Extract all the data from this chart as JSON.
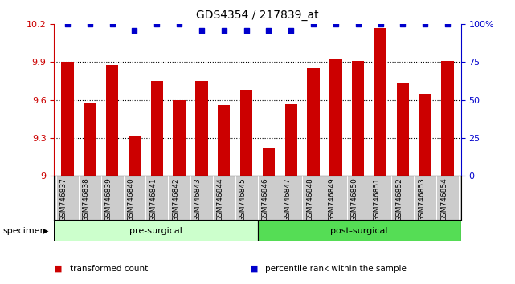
{
  "title": "GDS4354 / 217839_at",
  "samples": [
    "GSM746837",
    "GSM746838",
    "GSM746839",
    "GSM746840",
    "GSM746841",
    "GSM746842",
    "GSM746843",
    "GSM746844",
    "GSM746845",
    "GSM746846",
    "GSM746847",
    "GSM746848",
    "GSM746849",
    "GSM746850",
    "GSM746851",
    "GSM746852",
    "GSM746853",
    "GSM746854"
  ],
  "bar_values": [
    9.9,
    9.58,
    9.88,
    9.32,
    9.75,
    9.6,
    9.75,
    9.56,
    9.68,
    9.22,
    9.57,
    9.85,
    9.93,
    9.91,
    10.17,
    9.73,
    9.65,
    9.91
  ],
  "percentile_values": [
    100,
    100,
    100,
    96,
    100,
    100,
    96,
    96,
    96,
    96,
    96,
    100,
    100,
    100,
    100,
    100,
    100,
    100
  ],
  "bar_color": "#cc0000",
  "dot_color": "#0000cc",
  "ylim_left": [
    9.0,
    10.2
  ],
  "ylim_right": [
    0,
    100
  ],
  "yticks_left": [
    9.0,
    9.3,
    9.6,
    9.9,
    10.2
  ],
  "ytick_labels_left": [
    "9",
    "9.3",
    "9.6",
    "9.9",
    "10.2"
  ],
  "yticks_right": [
    0,
    25,
    50,
    75,
    100
  ],
  "ytick_labels_right": [
    "0",
    "25",
    "50",
    "75",
    "100%"
  ],
  "grid_values": [
    9.3,
    9.6,
    9.9
  ],
  "pre_surgical_count": 9,
  "post_surgical_count": 9,
  "pre_color": "#ccffcc",
  "post_color": "#55dd55",
  "bg_color": "#cccccc",
  "legend_items": [
    {
      "label": "transformed count",
      "color": "#cc0000"
    },
    {
      "label": "percentile rank within the sample",
      "color": "#0000cc"
    }
  ]
}
